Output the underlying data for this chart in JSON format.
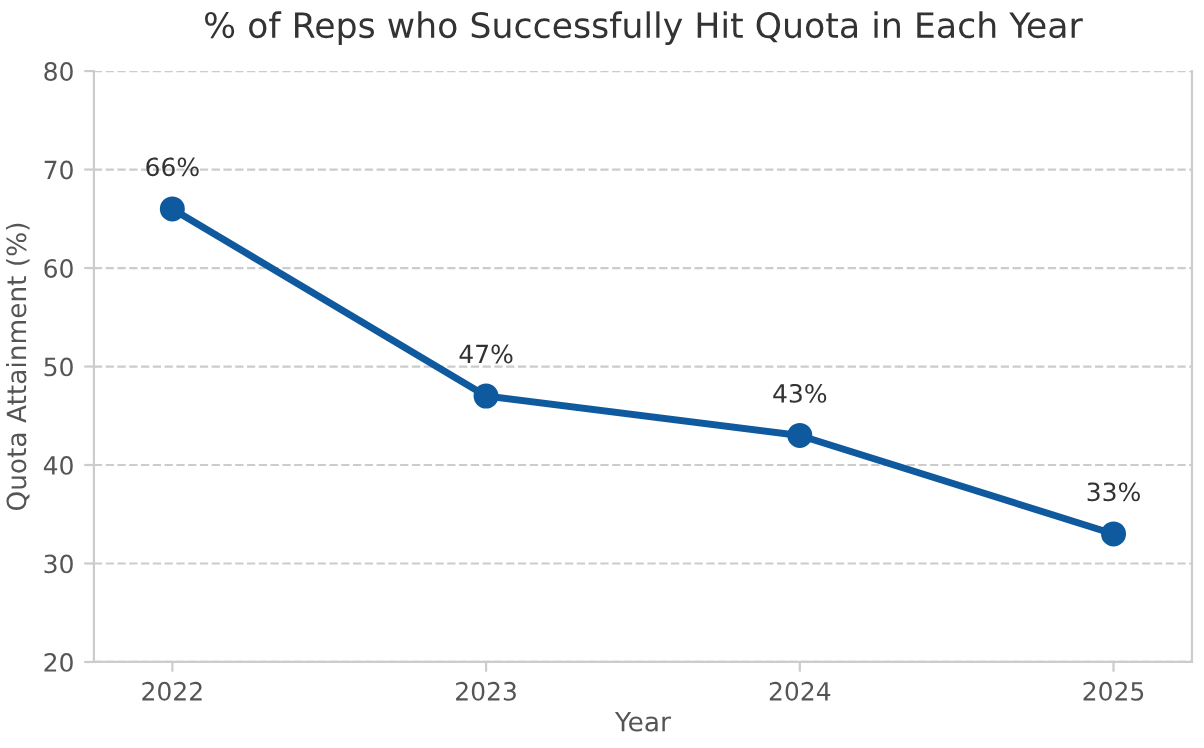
{
  "chart_data": {
    "type": "line",
    "title": "% of Reps who Successfully Hit Quota in Each Year",
    "xlabel": "Year",
    "ylabel": "Quota Attainment (%)",
    "categories": [
      "2022",
      "2023",
      "2024",
      "2025"
    ],
    "series": [
      {
        "color": "#0f5a9e",
        "values": [
          66,
          47,
          43,
          33
        ],
        "value_labels": [
          "66%",
          "47%",
          "43%",
          "33%"
        ]
      }
    ],
    "ylim": [
      20,
      80
    ],
    "yticks": [
      20,
      30,
      40,
      50,
      60,
      70,
      80
    ],
    "grid": "y",
    "marker": "circle",
    "line_style": "solid",
    "legend": false
  }
}
